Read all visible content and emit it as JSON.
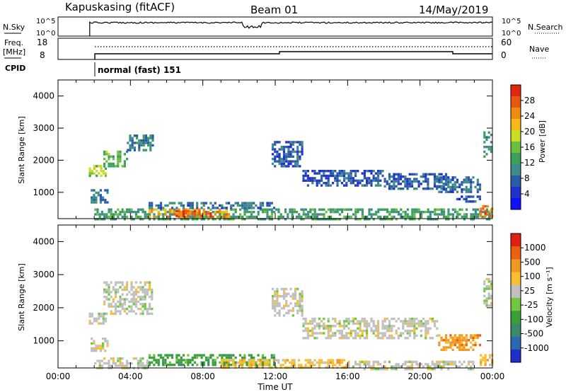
{
  "header": {
    "title": "Kapuskasing (fitACF)",
    "beam": "Beam 01",
    "date": "14/May/2019"
  },
  "panels": {
    "nsky": {
      "left_label": "N.Sky",
      "ticks": [
        "10^5",
        "10^0"
      ],
      "right_label": "N.Search",
      "right_ticks": [
        "10^5",
        "10^0"
      ]
    },
    "freq": {
      "left_label_line1": "Freq.",
      "left_label_line2": "[MHz]",
      "ticks": [
        "18",
        "8"
      ],
      "right_label": "Nave",
      "right_ticks": [
        "60",
        "0"
      ]
    },
    "cpid": {
      "label": "CPID",
      "mode_text": "normal (fast) 151"
    }
  },
  "chart_data": [
    {
      "type": "heatmap",
      "name": "power",
      "ylabel": "Slant Range [km]",
      "xlabel": "",
      "ylim": [
        180,
        4500
      ],
      "xlim_hours": [
        0,
        24
      ],
      "yticks": [
        "4000",
        "3000",
        "2000",
        "1000"
      ],
      "ytick_values": [
        4000,
        3000,
        2000,
        1000
      ],
      "colorbar": {
        "label": "Power [dB]",
        "ticks": [
          "28",
          "24",
          "20",
          "16",
          "12",
          "8",
          "4"
        ],
        "tick_values": [
          28,
          24,
          20,
          16,
          12,
          8,
          4
        ],
        "range": [
          0,
          32
        ],
        "colors": [
          "#1010ff",
          "#2233cc",
          "#2a5caa",
          "#3f8a8a",
          "#3aa05a",
          "#6cc040",
          "#c8dc28",
          "#f8b818",
          "#f08c10",
          "#e85810",
          "#e02810"
        ]
      },
      "regions": [
        {
          "h0": 1.7,
          "h1": 2.6,
          "r0": 1550,
          "r1": 1850,
          "v": 17
        },
        {
          "h0": 2.5,
          "h1": 3.8,
          "r0": 1800,
          "r1": 2300,
          "v": 15
        },
        {
          "h0": 3.8,
          "h1": 5.2,
          "r0": 2300,
          "r1": 2800,
          "v": 9
        },
        {
          "h0": 1.8,
          "h1": 2.8,
          "r0": 700,
          "r1": 1100,
          "v": 9
        },
        {
          "h0": 2.0,
          "h1": 24.0,
          "r0": 180,
          "r1": 500,
          "v": 12
        },
        {
          "h0": 5.0,
          "h1": 9.5,
          "r0": 250,
          "r1": 500,
          "v": 24
        },
        {
          "h0": 6.5,
          "h1": 8.5,
          "r0": 250,
          "r1": 450,
          "v": 29
        },
        {
          "h0": 5.0,
          "h1": 12.0,
          "r0": 500,
          "r1": 700,
          "v": 8
        },
        {
          "h0": 11.8,
          "h1": 13.5,
          "r0": 1800,
          "r1": 2600,
          "v": 6
        },
        {
          "h0": 13.5,
          "h1": 18.0,
          "r0": 1200,
          "r1": 1700,
          "v": 6
        },
        {
          "h0": 18.0,
          "h1": 21.5,
          "r0": 1100,
          "r1": 1600,
          "v": 6
        },
        {
          "h0": 21.0,
          "h1": 23.3,
          "r0": 1000,
          "r1": 1500,
          "v": 7
        },
        {
          "h0": 22.0,
          "h1": 23.3,
          "r0": 700,
          "r1": 900,
          "v": 5
        },
        {
          "h0": 23.3,
          "h1": 24.0,
          "r0": 250,
          "r1": 600,
          "v": 27
        },
        {
          "h0": 23.5,
          "h1": 24.0,
          "r0": 2100,
          "r1": 2900,
          "v": 11
        }
      ]
    },
    {
      "type": "heatmap",
      "name": "velocity",
      "ylabel": "Slant Range [km]",
      "xlabel": "Time UT",
      "ylim": [
        180,
        4500
      ],
      "xlim_hours": [
        0,
        24
      ],
      "yticks": [
        "4000",
        "3000",
        "2000",
        "1000"
      ],
      "ytick_values": [
        4000,
        3000,
        2000,
        1000
      ],
      "colorbar": {
        "label": "Velocity [m s⁻¹]",
        "ticks": [
          "1000",
          "500",
          "100",
          "25",
          "-25",
          "-100",
          "-500",
          "-1000"
        ],
        "colors": [
          "#1e2ec8",
          "#2a6ab0",
          "#3a8a6a",
          "#3aa03a",
          "#70c840",
          "#c0c0c0",
          "#f8c030",
          "#f09820",
          "#e86010",
          "#e02010"
        ]
      },
      "regions": [
        {
          "h0": 1.7,
          "h1": 2.6,
          "r0": 1550,
          "r1": 1850,
          "c": 5
        },
        {
          "h0": 2.5,
          "h1": 5.2,
          "r0": 1800,
          "r1": 2800,
          "c": 5
        },
        {
          "h0": 1.8,
          "h1": 2.8,
          "r0": 700,
          "r1": 1100,
          "c": 5
        },
        {
          "h0": 2.0,
          "h1": 5.0,
          "r0": 180,
          "r1": 500,
          "c": 5
        },
        {
          "h0": 5.0,
          "h1": 12.0,
          "r0": 250,
          "r1": 600,
          "c": 3
        },
        {
          "h0": 9.0,
          "h1": 16.0,
          "r0": 180,
          "r1": 450,
          "c": 6
        },
        {
          "h0": 16.0,
          "h1": 23.0,
          "r0": 180,
          "r1": 400,
          "c": 5
        },
        {
          "h0": 11.8,
          "h1": 13.5,
          "r0": 1800,
          "r1": 2600,
          "c": 5
        },
        {
          "h0": 13.5,
          "h1": 21.0,
          "r0": 1100,
          "r1": 1700,
          "c": 5
        },
        {
          "h0": 21.0,
          "h1": 23.3,
          "r0": 700,
          "r1": 1200,
          "c": 7
        },
        {
          "h0": 23.3,
          "h1": 24.0,
          "r0": 250,
          "r1": 600,
          "c": 6
        },
        {
          "h0": 23.5,
          "h1": 24.0,
          "r0": 2100,
          "r1": 2900,
          "c": 5
        }
      ]
    }
  ],
  "time_axis": {
    "label": "Time UT",
    "ticks": [
      "00:00",
      "04:00",
      "08:00",
      "12:00",
      "16:00",
      "20:00",
      "00:00"
    ]
  }
}
